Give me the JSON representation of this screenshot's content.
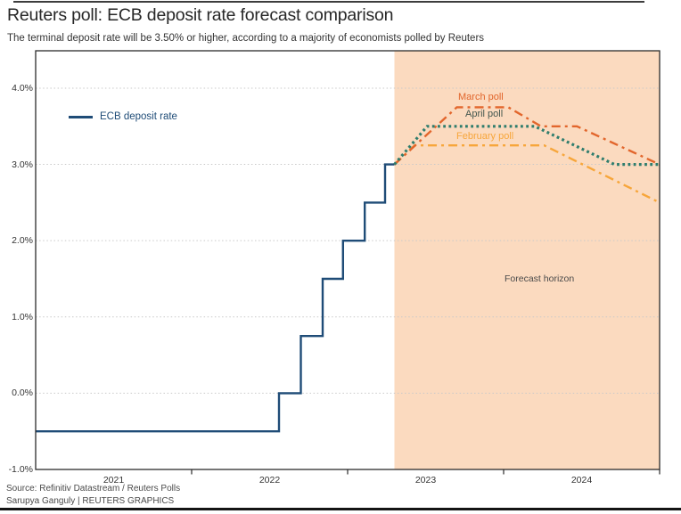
{
  "chart_data": {
    "type": "line",
    "title": "Reuters poll: ECB deposit rate forecast comparison",
    "subtitle": "The terminal deposit rate will be 3.50% or higher, according to a majority of economists polled by Reuters",
    "legend_label": "ECB deposit rate",
    "x_axis": {
      "range": [
        2021.0,
        2025.0
      ],
      "ticks": [
        {
          "label": "2021",
          "center": 2021.5
        },
        {
          "label": "2022",
          "center": 2022.5
        },
        {
          "label": "2023",
          "center": 2023.5
        },
        {
          "label": "2024",
          "center": 2024.5
        }
      ],
      "year_boundaries": [
        2022,
        2023,
        2024,
        2025
      ]
    },
    "y_axis": {
      "range": [
        -1.0,
        4.49
      ],
      "unit": "%",
      "ticks": [
        {
          "label": "4.0%",
          "value": 4.0
        },
        {
          "label": "3.0%",
          "value": 3.0
        },
        {
          "label": "2.0%",
          "value": 2.0
        },
        {
          "label": "1.0%",
          "value": 1.0
        },
        {
          "label": "0.0%",
          "value": 0.0
        },
        {
          "label": "-1.0%",
          "value": -1.0
        }
      ]
    },
    "forecast_region": {
      "x_start": 2023.3,
      "x_end": 2025.0,
      "label": "Forecast horizon",
      "color": "#fbdabf"
    },
    "series": [
      {
        "name": "ECB deposit rate",
        "style": "solid",
        "color": "#1f4c77",
        "label_color": "#1f4c77",
        "points": [
          [
            2021.0,
            -0.5
          ],
          [
            2022.56,
            -0.5
          ],
          [
            2022.56,
            0.0
          ],
          [
            2022.7,
            0.0
          ],
          [
            2022.7,
            0.75
          ],
          [
            2022.84,
            0.75
          ],
          [
            2022.84,
            1.5
          ],
          [
            2022.97,
            1.5
          ],
          [
            2022.97,
            2.0
          ],
          [
            2023.11,
            2.0
          ],
          [
            2023.11,
            2.5
          ],
          [
            2023.24,
            2.5
          ],
          [
            2023.24,
            3.0
          ],
          [
            2023.3,
            3.0
          ]
        ]
      },
      {
        "name": "February poll",
        "style": "dashdot",
        "color": "#f7a63b",
        "label_color": "#f7a63b",
        "points": [
          [
            2023.3,
            3.0
          ],
          [
            2023.43,
            3.25
          ],
          [
            2024.26,
            3.25
          ],
          [
            2025.0,
            2.5
          ]
        ]
      },
      {
        "name": "March poll",
        "style": "dashdot",
        "color": "#e2662c",
        "label_color": "#e2662c",
        "points": [
          [
            2023.3,
            3.0
          ],
          [
            2023.7,
            3.75
          ],
          [
            2024.03,
            3.75
          ],
          [
            2024.24,
            3.5
          ],
          [
            2024.47,
            3.5
          ],
          [
            2025.0,
            3.0
          ]
        ]
      },
      {
        "name": "April poll",
        "style": "dotted",
        "color": "#2f7d6d",
        "label_color": "#43564e",
        "points": [
          [
            2023.3,
            3.0
          ],
          [
            2023.51,
            3.5
          ],
          [
            2024.2,
            3.5
          ],
          [
            2024.71,
            3.0
          ],
          [
            2025.0,
            3.0
          ]
        ]
      }
    ],
    "grid": {
      "color": "#c9c9c9",
      "style": "dotted"
    },
    "axis_color": "#2b2b2b"
  },
  "footer": {
    "source": "Source: Refinitiv Datastream / Reuters Polls",
    "credit": "Sarupya Ganguly | REUTERS GRAPHICS"
  }
}
